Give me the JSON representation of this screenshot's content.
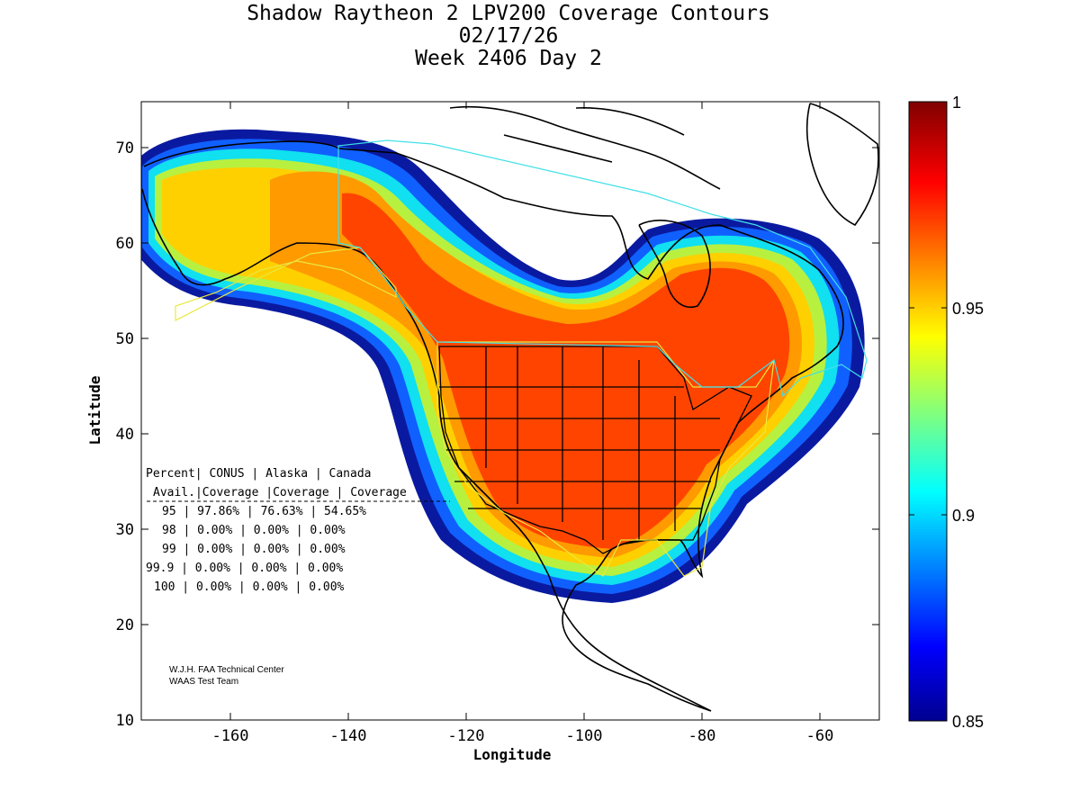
{
  "title": {
    "line1": "Shadow Raytheon 2 LPV200 Coverage Contours",
    "line2": "02/17/26",
    "line3": "Week 2406 Day 2"
  },
  "axes": {
    "xlabel": "Longitude",
    "ylabel": "Latitude",
    "xlim": [
      -175,
      -50
    ],
    "ylim": [
      10,
      75
    ],
    "xticks": [
      -160,
      -140,
      -120,
      -100,
      -80,
      -60
    ],
    "yticks": [
      10,
      20,
      30,
      40,
      50,
      60,
      70
    ]
  },
  "colorbar": {
    "min": 0.85,
    "max": 1,
    "ticks": [
      "0.85",
      "0.9",
      "0.95",
      "1"
    ],
    "tick_values": [
      0.85,
      0.9,
      0.95,
      1
    ]
  },
  "coverage_table": {
    "header1": [
      "Percent",
      "CONUS",
      "Alaska",
      "Canada"
    ],
    "header2": [
      "Avail.",
      "Coverage",
      "Coverage",
      "Coverage"
    ],
    "rows": [
      [
        "95",
        "97.86%",
        "76.63%",
        "54.65%"
      ],
      [
        "98",
        "0.00%",
        "0.00%",
        "0.00%"
      ],
      [
        "99",
        "0.00%",
        "0.00%",
        "0.00%"
      ],
      [
        "99.9",
        "0.00%",
        "0.00%",
        "0.00%"
      ],
      [
        "100",
        "0.00%",
        "0.00%",
        "0.00%"
      ]
    ]
  },
  "credit": {
    "line1": "W.J.H. FAA Technical Center",
    "line2": "WAAS Test Team"
  },
  "colors": {
    "coverage_max": "#ff4000",
    "coverage_low": "#00008f",
    "conus_boundary": "#e8e840",
    "canada_boundary": "#40e0e8"
  }
}
